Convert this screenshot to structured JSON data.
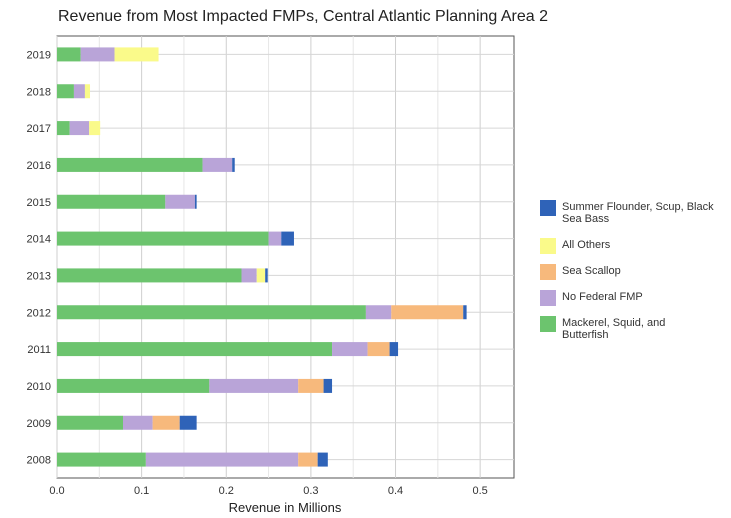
{
  "chart_data": {
    "type": "bar",
    "orientation": "horizontal",
    "stacked": true,
    "title": "Revenue from Most Impacted FMPs, Central Atlantic Planning Area 2",
    "xlabel": "Revenue in Millions",
    "ylabel": "",
    "xlim": [
      0,
      0.54
    ],
    "xticks": [
      "0.0",
      "0.1",
      "0.2",
      "0.3",
      "0.4",
      "0.5"
    ],
    "grid": true,
    "legend_position": "right",
    "categories": [
      "2008",
      "2009",
      "2010",
      "2011",
      "2012",
      "2013",
      "2014",
      "2015",
      "2016",
      "2017",
      "2018",
      "2019"
    ],
    "series": [
      {
        "name": "Mackerel, Squid, and Butterfish",
        "color": "#6cc46e",
        "values": [
          0.105,
          0.078,
          0.18,
          0.325,
          0.365,
          0.218,
          0.25,
          0.128,
          0.172,
          0.015,
          0.02,
          0.028
        ]
      },
      {
        "name": "No Federal FMP",
        "color": "#b9a4d8",
        "values": [
          0.18,
          0.035,
          0.105,
          0.042,
          0.03,
          0.018,
          0.015,
          0.035,
          0.035,
          0.023,
          0.013,
          0.04
        ]
      },
      {
        "name": "Sea Scallop",
        "color": "#f7b97c",
        "values": [
          0.023,
          0.032,
          0.03,
          0.026,
          0.085,
          0.0,
          0.0,
          0.0,
          0.0,
          0.0,
          0.0,
          0.0
        ]
      },
      {
        "name": "All Others",
        "color": "#fafa8a",
        "values": [
          0.0,
          0.0,
          0.0,
          0.0,
          0.0,
          0.01,
          0.0,
          0.0,
          0.0,
          0.013,
          0.006,
          0.052
        ]
      },
      {
        "name": "Summer Flounder, Scup, Black Sea Bass",
        "color": "#2f63b8",
        "values": [
          0.012,
          0.02,
          0.01,
          0.01,
          0.004,
          0.003,
          0.015,
          0.002,
          0.003,
          0.0,
          0.0,
          0.0
        ]
      }
    ],
    "legend": [
      {
        "label_lines": [
          "Summer Flounder, Scup, Black",
          "Sea Bass"
        ],
        "color": "#2f63b8"
      },
      {
        "label_lines": [
          "All Others"
        ],
        "color": "#fafa8a"
      },
      {
        "label_lines": [
          "Sea Scallop"
        ],
        "color": "#f7b97c"
      },
      {
        "label_lines": [
          "No Federal FMP"
        ],
        "color": "#b9a4d8"
      },
      {
        "label_lines": [
          "Mackerel, Squid, and",
          "Butterfish"
        ],
        "color": "#6cc46e"
      }
    ]
  }
}
